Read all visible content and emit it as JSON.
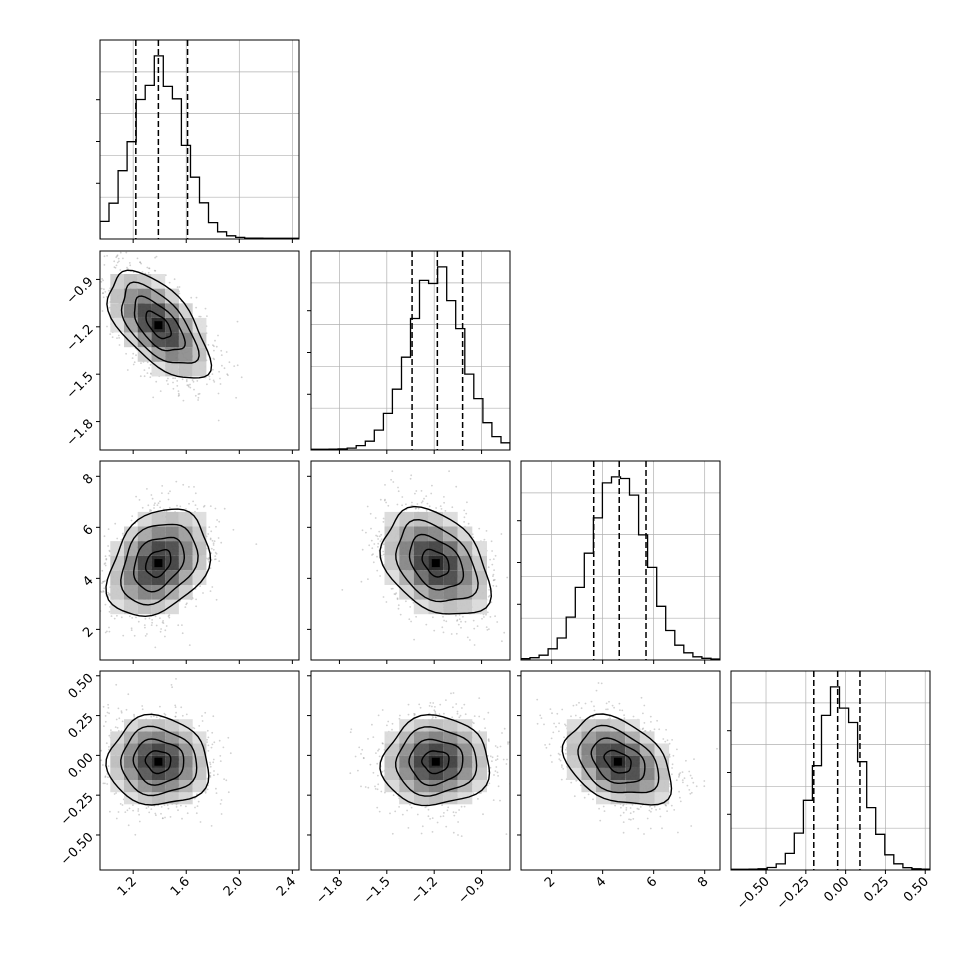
{
  "chart_data": {
    "type": "corner",
    "title": "",
    "grid": true,
    "parameters": [
      {
        "xlim": [
          0.95,
          2.45
        ],
        "ylim": [
          -1.98,
          -0.72
        ],
        "ticks": [
          1.2,
          1.6,
          2.0,
          2.4
        ],
        "tick_labels": [
          "1.2",
          "1.6",
          "2.0",
          "2.4"
        ],
        "quantiles": [
          1.22,
          1.39,
          1.61
        ],
        "mode": 1.39,
        "sd": 0.19
      },
      {
        "xlim": [
          -1.98,
          -0.72
        ],
        "ylim": [
          -1.98,
          -0.72
        ],
        "ticks": [
          -1.8,
          -1.5,
          -1.2,
          -0.9
        ],
        "tick_labels": [
          "−1.8",
          "−1.5",
          "−1.2",
          "−0.9"
        ],
        "quantiles": [
          -1.34,
          -1.18,
          -1.02
        ],
        "mode": -1.19,
        "sd": 0.17
      },
      {
        "xlim": [
          0.8,
          8.6
        ],
        "ylim": [
          0.8,
          8.6
        ],
        "ticks": [
          2,
          4,
          6,
          8
        ],
        "tick_labels": [
          "2",
          "4",
          "6",
          "8"
        ],
        "quantiles": [
          3.65,
          4.65,
          5.7
        ],
        "mode": 4.6,
        "sd": 1.05
      },
      {
        "xlim": [
          -0.72,
          0.53
        ],
        "ylim": [
          -0.72,
          0.53
        ],
        "ticks": [
          -0.5,
          -0.25,
          0.0,
          0.25,
          0.5
        ],
        "tick_labels": [
          "−0.50",
          "−0.25",
          "0.00",
          "0.25",
          "0.50"
        ],
        "quantiles": [
          -0.2,
          -0.05,
          0.09
        ],
        "mode": -0.04,
        "sd": 0.14
      }
    ],
    "correlations": [
      {
        "row": 1,
        "col": 0,
        "rho": -0.6
      },
      {
        "row": 2,
        "col": 0,
        "rho": 0.3
      },
      {
        "row": 2,
        "col": 1,
        "rho": -0.35
      },
      {
        "row": 3,
        "col": 0,
        "rho": -0.05
      },
      {
        "row": 3,
        "col": 1,
        "rho": 0.02
      },
      {
        "row": 3,
        "col": 2,
        "rho": -0.35
      }
    ],
    "colors": {
      "histogram": "#000000",
      "contour": "#000000",
      "points": "#9a9a9a",
      "grid": "#b0b0b0",
      "quantile_line": "#000000"
    }
  }
}
